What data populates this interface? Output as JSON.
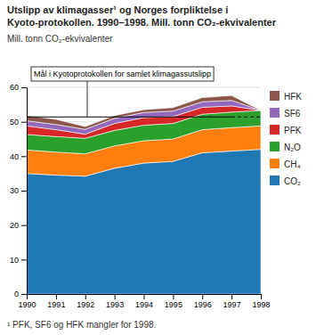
{
  "chart_data": {
    "type": "area",
    "stacked": true,
    "title": "Utslipp av klimagasser¹ og Norges forpliktelse i Kyoto-protokollen. 1990–1998. Mill. tonn CO₂-ekvivalenter",
    "y_label": "Mill. tonn CO₂-ekvivalenter",
    "x": [
      1990,
      1991,
      1992,
      1993,
      1994,
      1995,
      1996,
      1997,
      1998
    ],
    "series": [
      {
        "name": "CO₂",
        "values": [
          35.0,
          34.5,
          34.2,
          36.5,
          38.0,
          38.5,
          41.0,
          41.5,
          42.0
        ]
      },
      {
        "name": "CH₄",
        "values": [
          6.8,
          6.7,
          6.5,
          6.5,
          6.5,
          6.5,
          6.7,
          6.8,
          6.8
        ]
      },
      {
        "name": "N₂O",
        "values": [
          4.5,
          4.5,
          4.5,
          4.5,
          4.5,
          4.5,
          4.5,
          4.5,
          4.5
        ]
      },
      {
        "name": "PFK",
        "values": [
          2.5,
          2.0,
          1.2,
          2.0,
          2.2,
          2.0,
          2.0,
          1.8,
          0.0
        ]
      },
      {
        "name": "SF6",
        "values": [
          1.5,
          1.5,
          1.4,
          1.5,
          1.5,
          1.6,
          1.6,
          1.6,
          0.0
        ]
      },
      {
        "name": "HFK",
        "values": [
          1.5,
          1.5,
          0.8,
          0.8,
          0.8,
          1.0,
          1.2,
          1.4,
          0.0
        ]
      }
    ],
    "xlim": [
      1990,
      1998
    ],
    "xticks": [
      1990,
      1991,
      1992,
      1993,
      1994,
      1995,
      1996,
      1997,
      1998
    ],
    "ylim": [
      0,
      60
    ],
    "yticks": [
      0,
      10,
      20,
      30,
      40,
      50,
      60
    ],
    "grid": true,
    "legend": "right",
    "annotations": [
      {
        "text": "Mål i Kyotoprotokollen for samlet klimagassutslipp",
        "y": 51.4,
        "x": [
          1990,
          1997,
          1998
        ]
      },
      {
        "text": "¹ PFK, SF6 og HFK mangler for 1998."
      }
    ]
  }
}
